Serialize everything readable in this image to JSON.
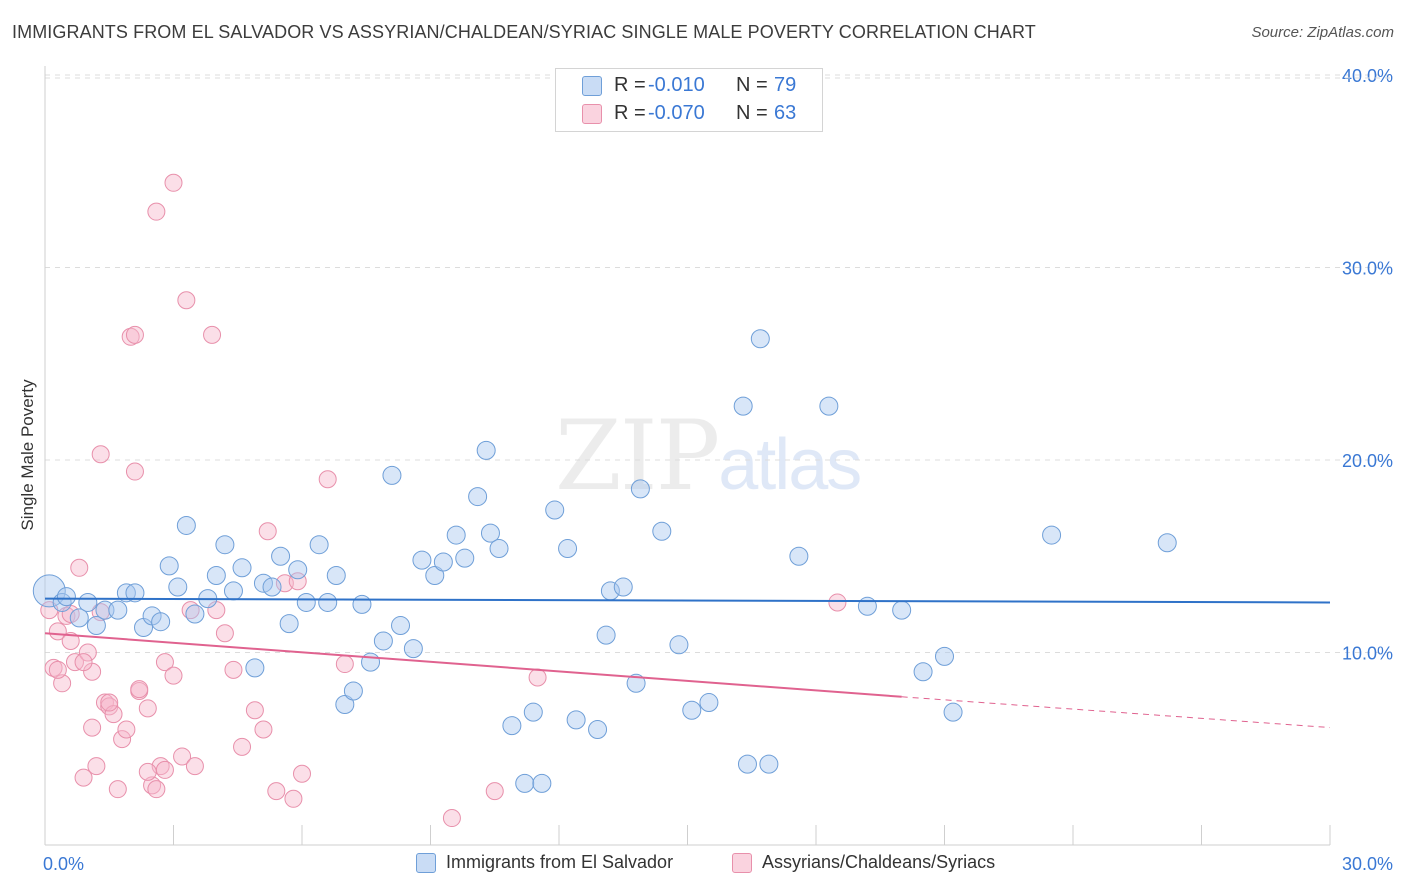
{
  "header": {
    "title": "IMMIGRANTS FROM EL SALVADOR VS ASSYRIAN/CHALDEAN/SYRIAC SINGLE MALE POVERTY CORRELATION CHART",
    "source": "Source: ZipAtlas.com"
  },
  "watermark": {
    "zip": "ZIP",
    "atlas": "atlas"
  },
  "legend": {
    "r_label": "R =",
    "n_label": "N =",
    "blue": {
      "r": "-0.010",
      "n": "79"
    },
    "pink": {
      "r": "-0.070",
      "n": "63"
    }
  },
  "colors": {
    "blue_fill": "#a9c8f0",
    "blue_stroke": "#6f9fd8",
    "blue_line": "#2f72c8",
    "pink_fill": "#f6b9cb",
    "pink_stroke": "#e890ab",
    "pink_line": "#e0628f",
    "tick_label": "#3a78d4",
    "grid": "#dcdcdc"
  },
  "chart_data": {
    "type": "scatter",
    "title": "IMMIGRANTS FROM EL SALVADOR VS ASSYRIAN/CHALDEAN/SYRIAC SINGLE MALE POVERTY CORRELATION CHART",
    "xlabel": "",
    "ylabel": "Single Male Poverty",
    "xlim": [
      0,
      30
    ],
    "ylim": [
      0,
      40
    ],
    "x_tick_labels": [
      "0.0%",
      "30.0%"
    ],
    "y_ticks": [
      10,
      20,
      30,
      40
    ],
    "y_tick_labels": [
      "10.0%",
      "20.0%",
      "30.0%",
      "40.0%"
    ],
    "grid": "horizontal dashed",
    "legend_position": "top-center",
    "series": [
      {
        "name": "Immigrants from El Salvador",
        "color": "#a9c8f0",
        "trend": {
          "x": [
            0,
            30
          ],
          "y": [
            12.8,
            12.6
          ]
        },
        "points": [
          [
            0.1,
            13.2
          ],
          [
            0.4,
            12.6
          ],
          [
            0.5,
            12.9
          ],
          [
            0.8,
            11.8
          ],
          [
            1.0,
            12.6
          ],
          [
            1.2,
            11.4
          ],
          [
            1.4,
            12.2
          ],
          [
            1.7,
            12.2
          ],
          [
            1.9,
            13.1
          ],
          [
            2.1,
            13.1
          ],
          [
            2.3,
            11.3
          ],
          [
            2.5,
            11.9
          ],
          [
            2.7,
            11.6
          ],
          [
            2.9,
            14.5
          ],
          [
            3.1,
            13.4
          ],
          [
            3.3,
            16.6
          ],
          [
            3.5,
            12.0
          ],
          [
            3.8,
            12.8
          ],
          [
            4.0,
            14.0
          ],
          [
            4.2,
            15.6
          ],
          [
            4.4,
            13.2
          ],
          [
            4.6,
            14.4
          ],
          [
            4.9,
            9.2
          ],
          [
            5.1,
            13.6
          ],
          [
            5.3,
            13.4
          ],
          [
            5.5,
            15.0
          ],
          [
            5.7,
            11.5
          ],
          [
            5.9,
            14.3
          ],
          [
            6.1,
            12.6
          ],
          [
            6.4,
            15.6
          ],
          [
            6.6,
            12.6
          ],
          [
            6.8,
            14.0
          ],
          [
            7.0,
            7.3
          ],
          [
            7.2,
            8.0
          ],
          [
            7.4,
            12.5
          ],
          [
            7.6,
            9.5
          ],
          [
            7.9,
            10.6
          ],
          [
            8.1,
            19.2
          ],
          [
            8.3,
            11.4
          ],
          [
            8.6,
            10.2
          ],
          [
            8.8,
            14.8
          ],
          [
            9.1,
            14.0
          ],
          [
            9.3,
            14.7
          ],
          [
            9.6,
            16.1
          ],
          [
            9.8,
            14.9
          ],
          [
            10.1,
            18.1
          ],
          [
            10.3,
            20.5
          ],
          [
            10.4,
            16.2
          ],
          [
            10.6,
            15.4
          ],
          [
            10.9,
            6.2
          ],
          [
            11.2,
            3.2
          ],
          [
            11.4,
            6.9
          ],
          [
            11.6,
            3.2
          ],
          [
            11.9,
            17.4
          ],
          [
            12.2,
            15.4
          ],
          [
            12.4,
            6.5
          ],
          [
            12.9,
            6.0
          ],
          [
            13.1,
            10.9
          ],
          [
            13.2,
            13.2
          ],
          [
            13.5,
            13.4
          ],
          [
            13.8,
            8.4
          ],
          [
            13.9,
            18.5
          ],
          [
            14.4,
            16.3
          ],
          [
            14.8,
            10.4
          ],
          [
            15.1,
            7.0
          ],
          [
            15.5,
            7.4
          ],
          [
            16.3,
            22.8
          ],
          [
            16.4,
            4.2
          ],
          [
            16.7,
            26.3
          ],
          [
            16.9,
            4.2
          ],
          [
            17.6,
            15.0
          ],
          [
            18.3,
            22.8
          ],
          [
            19.2,
            12.4
          ],
          [
            20.0,
            12.2
          ],
          [
            20.5,
            9.0
          ],
          [
            21.0,
            9.8
          ],
          [
            21.2,
            6.9
          ],
          [
            23.5,
            16.1
          ],
          [
            26.2,
            15.7
          ]
        ]
      },
      {
        "name": "Assyrians/Chaldeans/Syriacs",
        "color": "#f6b9cb",
        "trend": {
          "x": [
            0,
            20
          ],
          "y": [
            11.0,
            7.7
          ]
        },
        "trend_extension": {
          "x": [
            20,
            30
          ],
          "y": [
            7.7,
            6.1
          ]
        },
        "points": [
          [
            0.1,
            12.2
          ],
          [
            0.2,
            9.2
          ],
          [
            0.3,
            11.1
          ],
          [
            0.4,
            8.4
          ],
          [
            0.5,
            11.9
          ],
          [
            0.6,
            10.6
          ],
          [
            0.7,
            9.5
          ],
          [
            0.8,
            14.4
          ],
          [
            0.9,
            3.5
          ],
          [
            1.0,
            10.0
          ],
          [
            1.1,
            6.1
          ],
          [
            1.2,
            4.1
          ],
          [
            1.3,
            12.1
          ],
          [
            1.3,
            20.3
          ],
          [
            1.4,
            7.4
          ],
          [
            1.5,
            7.2
          ],
          [
            1.6,
            6.8
          ],
          [
            1.7,
            2.9
          ],
          [
            1.8,
            5.5
          ],
          [
            1.9,
            6.0
          ],
          [
            2.0,
            26.4
          ],
          [
            2.2,
            8.0
          ],
          [
            2.2,
            8.1
          ],
          [
            2.1,
            26.5
          ],
          [
            2.1,
            19.4
          ],
          [
            2.4,
            7.1
          ],
          [
            2.5,
            3.1
          ],
          [
            2.6,
            2.9
          ],
          [
            2.6,
            32.9
          ],
          [
            2.7,
            4.1
          ],
          [
            2.8,
            9.5
          ],
          [
            2.8,
            3.9
          ],
          [
            3.0,
            34.4
          ],
          [
            3.0,
            8.8
          ],
          [
            3.2,
            4.6
          ],
          [
            3.3,
            28.3
          ],
          [
            3.4,
            12.2
          ],
          [
            3.5,
            4.1
          ],
          [
            3.9,
            26.5
          ],
          [
            4.0,
            12.2
          ],
          [
            4.2,
            11.0
          ],
          [
            4.4,
            9.1
          ],
          [
            4.6,
            5.1
          ],
          [
            4.9,
            7.0
          ],
          [
            5.1,
            6.0
          ],
          [
            5.2,
            16.3
          ],
          [
            5.4,
            2.8
          ],
          [
            5.6,
            13.6
          ],
          [
            5.8,
            2.4
          ],
          [
            5.9,
            13.7
          ],
          [
            6.0,
            3.7
          ],
          [
            6.6,
            19.0
          ],
          [
            7.0,
            9.4
          ],
          [
            9.5,
            1.4
          ],
          [
            10.5,
            2.8
          ],
          [
            11.5,
            8.7
          ],
          [
            18.5,
            12.6
          ],
          [
            0.3,
            9.1
          ],
          [
            0.6,
            12.0
          ],
          [
            1.1,
            9.0
          ],
          [
            0.9,
            9.5
          ],
          [
            1.5,
            7.4
          ],
          [
            2.4,
            3.8
          ]
        ]
      }
    ]
  },
  "bottom_legend": {
    "blue_label": "Immigrants from El Salvador",
    "pink_label": "Assyrians/Chaldeans/Syriacs"
  }
}
